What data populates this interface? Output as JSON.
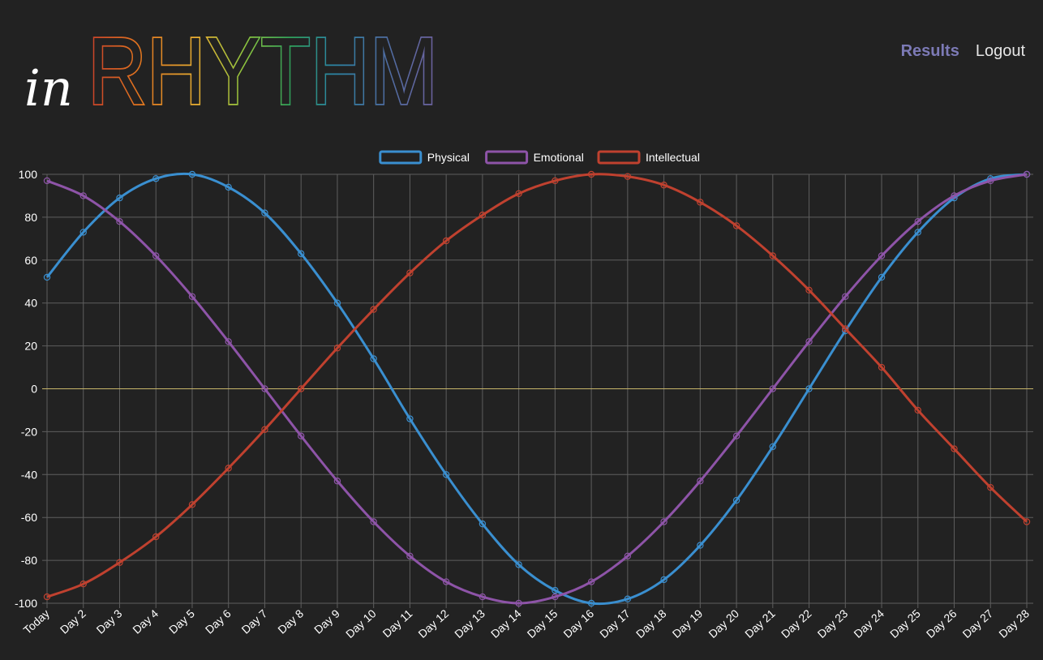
{
  "brand": {
    "script": "in",
    "word": "RHYTHM"
  },
  "nav": {
    "results_label": "Results",
    "logout_label": "Logout"
  },
  "colors": {
    "background": "#222222",
    "grid": "#5e5e5e",
    "zero_line": "#c8b66a",
    "text": "#ffffff",
    "nav_active": "#7c7ab6",
    "logo_gradient": [
      "#c0392b",
      "#e67e22",
      "#f1c40f",
      "#7dc242",
      "#27ae60",
      "#2b8aa8",
      "#4a6fa5",
      "#6a5b9a"
    ]
  },
  "chart_data": {
    "type": "line",
    "title": "",
    "xlabel": "",
    "ylabel": "",
    "ylim": [
      -100,
      100
    ],
    "yticks": [
      100,
      80,
      60,
      40,
      20,
      0,
      -20,
      -40,
      -60,
      -80,
      -100
    ],
    "grid": true,
    "legend": "top-center",
    "categories": [
      "Today",
      "Day 2",
      "Day 3",
      "Day 4",
      "Day 5",
      "Day 6",
      "Day 7",
      "Day 8",
      "Day 9",
      "Day 10",
      "Day 11",
      "Day 12",
      "Day 13",
      "Day 14",
      "Day 15",
      "Day 16",
      "Day 17",
      "Day 18",
      "Day 19",
      "Day 20",
      "Day 21",
      "Day 22",
      "Day 23",
      "Day 24",
      "Day 25",
      "Day 26",
      "Day 27",
      "Day 28"
    ],
    "series": [
      {
        "name": "Physical",
        "color": "#3a8fd0",
        "values": [
          52,
          73,
          89,
          98,
          100,
          94,
          82,
          63,
          40,
          14,
          -14,
          -40,
          -63,
          -82,
          -94,
          -100,
          -98,
          -89,
          -73,
          -52,
          -27,
          0,
          27,
          52,
          73,
          89,
          98,
          100
        ]
      },
      {
        "name": "Emotional",
        "color": "#8e54a8",
        "values": [
          97,
          90,
          78,
          62,
          43,
          22,
          0,
          -22,
          -43,
          -62,
          -78,
          -90,
          -97,
          -100,
          -97,
          -90,
          -78,
          -62,
          -43,
          -22,
          0,
          22,
          43,
          62,
          78,
          90,
          97,
          100
        ]
      },
      {
        "name": "Intellectual",
        "color": "#c0412f",
        "values": [
          -97,
          -91,
          -81,
          -69,
          -54,
          -37,
          -19,
          0,
          19,
          37,
          54,
          69,
          81,
          91,
          97,
          100,
          99,
          95,
          87,
          76,
          62,
          46,
          28,
          10,
          -10,
          -28,
          -46,
          -62
        ]
      }
    ]
  }
}
